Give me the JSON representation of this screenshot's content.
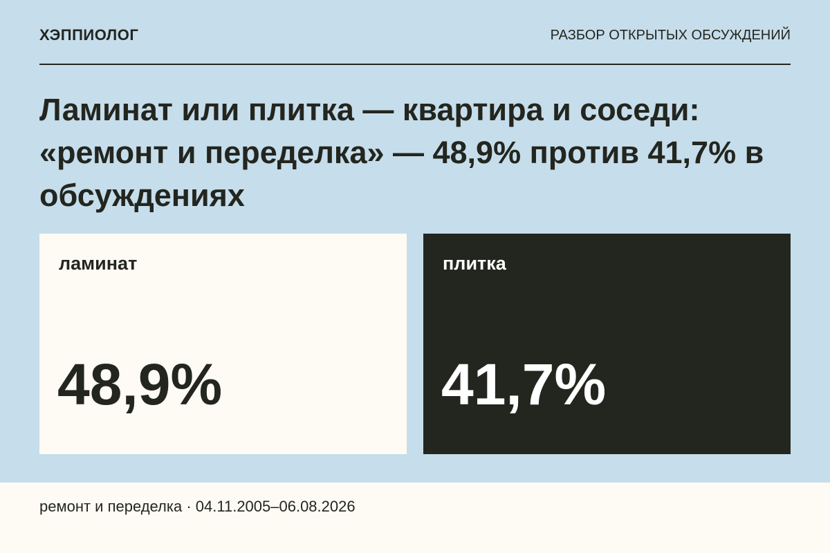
{
  "header": {
    "brand": "ХЭППИОЛОГ",
    "section": "РАЗБОР ОТКРЫТЫХ ОБСУЖДЕНИЙ"
  },
  "title": "Ламинат или плитка — квартира и соседи: «ремонт и переделка» — 48,9% против 41,7% в обсуждениях",
  "cards": [
    {
      "label": "ламинат",
      "value": "48,9%"
    },
    {
      "label": "плитка",
      "value": "41,7%"
    }
  ],
  "footer": "ремонт и переделка · 04.11.2005–06.08.2026"
}
